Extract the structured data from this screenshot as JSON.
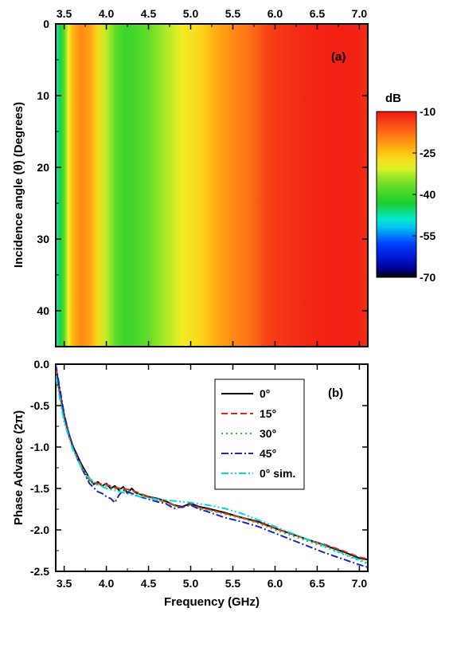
{
  "chart_data": [
    {
      "type": "heatmap",
      "panel_label": "(a)",
      "xlabel": "",
      "ylabel": "Incidence angle (θ) (Degrees)",
      "x_ticks": [
        "3.5",
        "4.0",
        "4.5",
        "5.0",
        "5.5",
        "6.0",
        "6.5",
        "7.0"
      ],
      "y_ticks": [
        "0",
        "10",
        "20",
        "30",
        "40"
      ],
      "xlim": [
        3.4,
        7.1
      ],
      "ylim": [
        0,
        45
      ],
      "x_axis_position": "top",
      "colorbar": {
        "title": "dB",
        "range": [
          -70,
          -10
        ],
        "ticks": [
          "-10",
          "-25",
          "-40",
          "-55",
          "-70"
        ]
      },
      "frequency_profile_db": {
        "x": [
          3.4,
          3.45,
          3.5,
          3.55,
          3.6,
          3.7,
          3.8,
          3.9,
          4.0,
          4.1,
          4.2,
          4.3,
          4.5,
          4.7,
          4.9,
          5.0,
          5.1,
          5.2,
          5.3,
          5.5,
          5.7,
          5.8,
          5.9,
          6.0,
          6.2,
          6.5,
          6.8,
          7.0,
          7.1
        ],
        "values": [
          -50,
          -44,
          -38,
          -30,
          -24,
          -20,
          -22,
          -27,
          -32,
          -37,
          -40,
          -40,
          -37,
          -33,
          -29,
          -28,
          -27,
          -25,
          -23,
          -20,
          -18,
          -16,
          -14,
          -13,
          -12,
          -11,
          -10.5,
          -11,
          -12
        ]
      },
      "grid": false,
      "legend": "colorbar-right"
    },
    {
      "type": "line",
      "panel_label": "(b)",
      "xlabel": "Frequency (GHz)",
      "ylabel": "Phase Advance (2π)",
      "x_ticks": [
        "3.5",
        "4.0",
        "4.5",
        "5.0",
        "5.5",
        "6.0",
        "6.5",
        "7.0"
      ],
      "y_ticks": [
        "0.0",
        "-0.5",
        "-1.0",
        "-1.5",
        "-2.0",
        "-2.5"
      ],
      "xlim": [
        3.4,
        7.1
      ],
      "ylim": [
        -2.5,
        0.0
      ],
      "grid": false,
      "legend_position": "top-right",
      "series": [
        {
          "name": "0°",
          "color": "#000000",
          "dash": "solid",
          "x": [
            3.4,
            3.45,
            3.5,
            3.55,
            3.6,
            3.7,
            3.8,
            3.85,
            3.9,
            3.95,
            4.0,
            4.05,
            4.1,
            4.15,
            4.2,
            4.25,
            4.3,
            4.35,
            4.4,
            4.5,
            4.6,
            4.7,
            4.8,
            4.9,
            5.0,
            5.1,
            5.2,
            5.4,
            5.6,
            5.8,
            6.0,
            6.2,
            6.4,
            6.6,
            6.8,
            7.0,
            7.1
          ],
          "y": [
            -0.02,
            -0.35,
            -0.62,
            -0.82,
            -0.98,
            -1.2,
            -1.38,
            -1.45,
            -1.42,
            -1.47,
            -1.44,
            -1.5,
            -1.47,
            -1.52,
            -1.48,
            -1.56,
            -1.5,
            -1.55,
            -1.57,
            -1.6,
            -1.62,
            -1.65,
            -1.7,
            -1.72,
            -1.68,
            -1.72,
            -1.74,
            -1.79,
            -1.85,
            -1.9,
            -1.98,
            -2.05,
            -2.12,
            -2.19,
            -2.26,
            -2.34,
            -2.36
          ]
        },
        {
          "name": "15°",
          "color": "#e8211c",
          "dash": "dashed",
          "x": [
            3.4,
            3.45,
            3.5,
            3.55,
            3.6,
            3.7,
            3.8,
            3.9,
            4.0,
            4.1,
            4.2,
            4.3,
            4.4,
            4.5,
            4.6,
            4.7,
            4.8,
            4.9,
            5.0,
            5.1,
            5.2,
            5.4,
            5.6,
            5.8,
            6.0,
            6.2,
            6.4,
            6.6,
            6.8,
            7.0,
            7.1
          ],
          "y": [
            -0.05,
            -0.38,
            -0.64,
            -0.84,
            -1.0,
            -1.22,
            -1.4,
            -1.44,
            -1.45,
            -1.49,
            -1.5,
            -1.52,
            -1.56,
            -1.6,
            -1.63,
            -1.66,
            -1.7,
            -1.73,
            -1.69,
            -1.73,
            -1.75,
            -1.8,
            -1.85,
            -1.91,
            -1.98,
            -2.05,
            -2.12,
            -2.18,
            -2.25,
            -2.33,
            -2.35
          ]
        },
        {
          "name": "30°",
          "color": "#22cc22",
          "dash": "dotted",
          "x": [
            3.4,
            3.45,
            3.5,
            3.55,
            3.6,
            3.7,
            3.8,
            3.9,
            4.0,
            4.1,
            4.2,
            4.3,
            4.4,
            4.5,
            4.6,
            4.7,
            4.8,
            4.9,
            5.0,
            5.1,
            5.2,
            5.4,
            5.6,
            5.8,
            6.0,
            6.2,
            6.4,
            6.6,
            6.8,
            7.0,
            7.1
          ],
          "y": [
            -0.08,
            -0.4,
            -0.66,
            -0.86,
            -1.02,
            -1.24,
            -1.42,
            -1.46,
            -1.47,
            -1.5,
            -1.52,
            -1.54,
            -1.57,
            -1.61,
            -1.64,
            -1.67,
            -1.71,
            -1.73,
            -1.7,
            -1.74,
            -1.76,
            -1.81,
            -1.86,
            -1.92,
            -2.0,
            -2.07,
            -2.14,
            -2.21,
            -2.29,
            -2.37,
            -2.41
          ]
        },
        {
          "name": "45°",
          "color": "#1f24c4",
          "dash": "dashdot",
          "x": [
            3.4,
            3.45,
            3.5,
            3.55,
            3.6,
            3.7,
            3.8,
            3.9,
            3.95,
            4.0,
            4.05,
            4.1,
            4.15,
            4.2,
            4.3,
            4.4,
            4.5,
            4.6,
            4.7,
            4.8,
            4.9,
            5.0,
            5.1,
            5.2,
            5.4,
            5.6,
            5.8,
            6.0,
            6.2,
            6.4,
            6.6,
            6.8,
            7.0,
            7.1
          ],
          "y": [
            0.0,
            -0.3,
            -0.6,
            -0.82,
            -1.0,
            -1.24,
            -1.44,
            -1.54,
            -1.56,
            -1.6,
            -1.62,
            -1.67,
            -1.58,
            -1.52,
            -1.56,
            -1.6,
            -1.63,
            -1.66,
            -1.68,
            -1.74,
            -1.72,
            -1.7,
            -1.75,
            -1.78,
            -1.85,
            -1.9,
            -1.96,
            -2.04,
            -2.12,
            -2.2,
            -2.28,
            -2.35,
            -2.42,
            -2.45
          ]
        },
        {
          "name": "0° sim.",
          "color": "#00d8e8",
          "dash": "dashdotdot",
          "x": [
            3.4,
            3.5,
            3.6,
            3.7,
            3.8,
            3.9,
            4.0,
            4.2,
            4.4,
            4.6,
            4.8,
            5.0,
            5.2,
            5.4,
            5.6,
            5.8,
            6.0,
            6.2,
            6.4,
            6.6,
            6.8,
            7.0,
            7.1
          ],
          "y": [
            -0.15,
            -0.7,
            -1.02,
            -1.24,
            -1.38,
            -1.45,
            -1.5,
            -1.55,
            -1.6,
            -1.63,
            -1.65,
            -1.67,
            -1.7,
            -1.74,
            -1.8,
            -1.88,
            -1.96,
            -2.04,
            -2.12,
            -2.2,
            -2.28,
            -2.36,
            -2.4
          ]
        }
      ]
    }
  ]
}
